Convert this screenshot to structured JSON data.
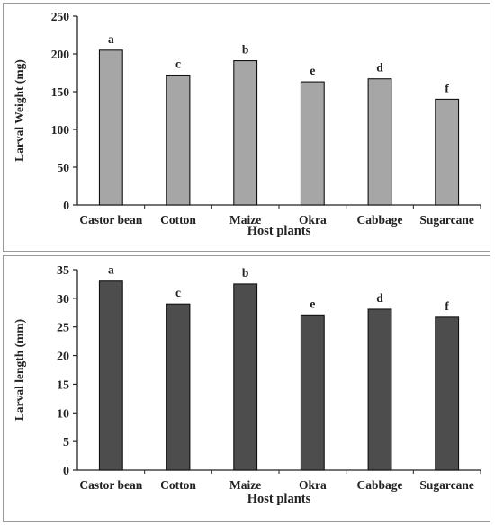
{
  "chart_data": [
    {
      "type": "bar",
      "categories": [
        "Castor bean",
        "Cotton",
        "Maize",
        "Okra",
        "Cabbage",
        "Sugarcane"
      ],
      "values": [
        205,
        172,
        191,
        163,
        167,
        140
      ],
      "labels": [
        "a",
        "c",
        "b",
        "e",
        "d",
        "f"
      ],
      "xlabel": "Host plants",
      "ylabel": "Larval Weight (mg)",
      "ylim": [
        0,
        250
      ],
      "yticks": [
        0,
        50,
        100,
        150,
        200,
        250
      ],
      "bar_color": "#a6a6a6",
      "grid": false,
      "legend": "none"
    },
    {
      "type": "bar",
      "categories": [
        "Castor bean",
        "Cotton",
        "Maize",
        "Okra",
        "Cabbage",
        "Sugarcane"
      ],
      "values": [
        33.0,
        29.0,
        32.5,
        27.1,
        28.1,
        26.7
      ],
      "labels": [
        "a",
        "c",
        "b",
        "e",
        "d",
        "f"
      ],
      "xlabel": "Host plants",
      "ylabel": "Larval length (mm)",
      "ylim": [
        0,
        35
      ],
      "yticks": [
        0,
        5,
        10,
        15,
        20,
        25,
        30,
        35
      ],
      "bar_color": "#4d4d4d",
      "grid": false,
      "legend": "none"
    }
  ]
}
